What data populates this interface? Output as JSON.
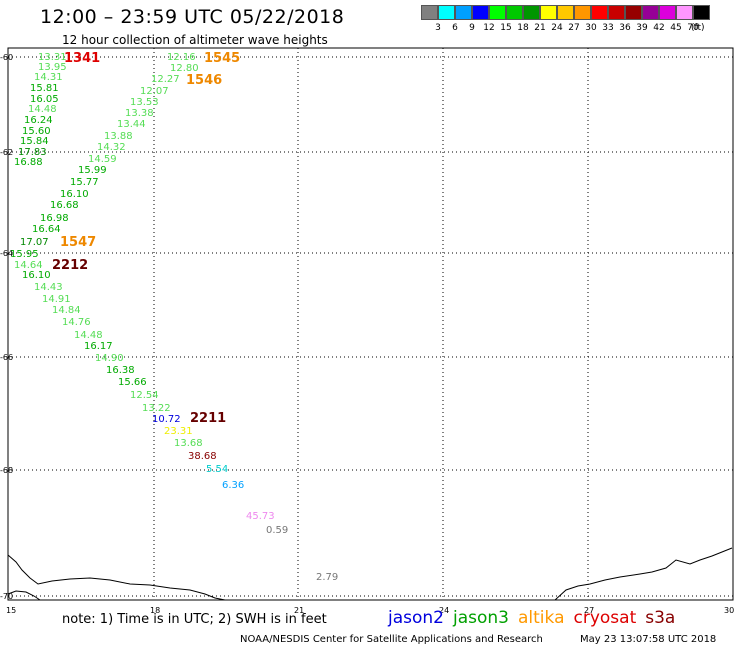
{
  "header": {
    "title": "12:00 – 23:59 UTC 05/22/2018",
    "subtitle": "12 hour collection of altimeter wave heights"
  },
  "legend": {
    "unit": "(ft)",
    "colors": [
      "#808080",
      "#00ffff",
      "#00a0ff",
      "#0000ff",
      "#00ff00",
      "#00c800",
      "#009600",
      "#ffff00",
      "#ffc800",
      "#ff9600",
      "#ff0000",
      "#c80000",
      "#960000",
      "#960096",
      "#dc00dc",
      "#ff96ff",
      "#000000"
    ],
    "labels": [
      "3",
      "6",
      "9",
      "12",
      "15",
      "18",
      "21",
      "24",
      "27",
      "30",
      "33",
      "36",
      "39",
      "42",
      "45",
      "70"
    ]
  },
  "axes": {
    "lat_ticks": [
      "-60",
      "-62",
      "-64",
      "-66",
      "-68",
      "-70"
    ],
    "lon_ticks": [
      "15",
      "18",
      "21",
      "24",
      "27",
      "30"
    ]
  },
  "readings": [
    {
      "v": "13.31",
      "c": "#55dd55"
    },
    {
      "v": "13.95",
      "c": "#55dd55"
    },
    {
      "v": "14.31",
      "c": "#55dd55"
    },
    {
      "v": "15.81",
      "c": "#00aa00"
    },
    {
      "v": "16.05",
      "c": "#00aa00"
    },
    {
      "v": "14.48",
      "c": "#55dd55"
    },
    {
      "v": "16.24",
      "c": "#00aa00"
    },
    {
      "v": "15.60",
      "c": "#00aa00"
    },
    {
      "v": "15.84",
      "c": "#00aa00"
    },
    {
      "v": "17.83",
      "c": "#008800"
    },
    {
      "v": "16.88",
      "c": "#00aa00"
    },
    {
      "v": "12.16",
      "c": "#55dd55"
    },
    {
      "v": "12.80",
      "c": "#55dd55"
    },
    {
      "v": "12.27",
      "c": "#55dd55"
    },
    {
      "v": "12.07",
      "c": "#55dd55"
    },
    {
      "v": "13.53",
      "c": "#55dd55"
    },
    {
      "v": "13.38",
      "c": "#55dd55"
    },
    {
      "v": "13.44",
      "c": "#55dd55"
    },
    {
      "v": "13.88",
      "c": "#55dd55"
    },
    {
      "v": "14.32",
      "c": "#55dd55"
    },
    {
      "v": "14.59",
      "c": "#55dd55"
    },
    {
      "v": "15.99",
      "c": "#00aa00"
    },
    {
      "v": "15.77",
      "c": "#00aa00"
    },
    {
      "v": "16.10",
      "c": "#00aa00"
    },
    {
      "v": "16.68",
      "c": "#00aa00"
    },
    {
      "v": "16.98",
      "c": "#00aa00"
    },
    {
      "v": "16.64",
      "c": "#00aa00"
    },
    {
      "v": "17.07",
      "c": "#008800"
    },
    {
      "v": "15.95",
      "c": "#00aa00"
    },
    {
      "v": "14.64",
      "c": "#55dd55"
    },
    {
      "v": "16.10",
      "c": "#00aa00"
    },
    {
      "v": "14.43",
      "c": "#55dd55"
    },
    {
      "v": "14.91",
      "c": "#55dd55"
    },
    {
      "v": "14.84",
      "c": "#55dd55"
    },
    {
      "v": "14.76",
      "c": "#55dd55"
    },
    {
      "v": "14.48",
      "c": "#55dd55"
    },
    {
      "v": "16.17",
      "c": "#00aa00"
    },
    {
      "v": "14.90",
      "c": "#55dd55"
    },
    {
      "v": "16.38",
      "c": "#00aa00"
    },
    {
      "v": "15.66",
      "c": "#00aa00"
    },
    {
      "v": "12.54",
      "c": "#55dd55"
    },
    {
      "v": "13.22",
      "c": "#55dd55"
    },
    {
      "v": "10.72",
      "c": "#0000dd"
    },
    {
      "v": "23.31",
      "c": "#eeee00"
    },
    {
      "v": "13.68",
      "c": "#55dd55"
    },
    {
      "v": "38.68",
      "c": "#880000"
    },
    {
      "v": "5.54",
      "c": "#00cccc"
    },
    {
      "v": "6.36",
      "c": "#00a0ff"
    },
    {
      "v": "45.73",
      "c": "#ee88ee"
    },
    {
      "v": "0.59",
      "c": "#777777"
    },
    {
      "v": "2.79",
      "c": "#777777"
    }
  ],
  "passes": [
    {
      "v": "1341",
      "c": "#dd0000"
    },
    {
      "v": "1545",
      "c": "#ee8800"
    },
    {
      "v": "1546",
      "c": "#ee8800"
    },
    {
      "v": "1547",
      "c": "#ee8800"
    },
    {
      "v": "2212",
      "c": "#660000"
    },
    {
      "v": "2211",
      "c": "#660000"
    }
  ],
  "footer": {
    "note": "note: 1) Time is in UTC; 2) SWH is in feet",
    "satellites": [
      {
        "name": "jason2",
        "c": "#0000dd"
      },
      {
        "name": "jason3",
        "c": "#00a000"
      },
      {
        "name": "altika",
        "c": "#ff9900"
      },
      {
        "name": "cryosat",
        "c": "#dd0000"
      },
      {
        "name": "s3a",
        "c": "#880000"
      }
    ],
    "credit": "NOAA/NESDIS Center for Satellite Applications and Research",
    "timestamp": "May 23 13:07:58 UTC 2018"
  }
}
